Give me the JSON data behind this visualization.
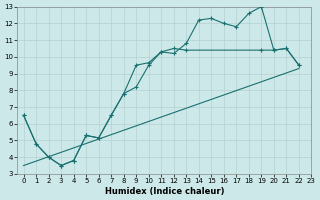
{
  "xlabel": "Humidex (Indice chaleur)",
  "xlim": [
    -0.5,
    23
  ],
  "ylim": [
    3,
    13
  ],
  "xticks": [
    0,
    1,
    2,
    3,
    4,
    5,
    6,
    7,
    8,
    9,
    10,
    11,
    12,
    13,
    14,
    15,
    16,
    17,
    18,
    19,
    20,
    21,
    22,
    23
  ],
  "yticks": [
    3,
    4,
    5,
    6,
    7,
    8,
    9,
    10,
    11,
    12,
    13
  ],
  "bg_color": "#cde8e8",
  "grid_color": "#b8d4d4",
  "line_color": "#1a7070",
  "line1_x": [
    0,
    1,
    2,
    3,
    4,
    5,
    6,
    7,
    8,
    9,
    10,
    11,
    12,
    13,
    14,
    15,
    16,
    17,
    18,
    19,
    20,
    21,
    22
  ],
  "line1_y": [
    6.5,
    4.8,
    4.0,
    3.5,
    3.8,
    5.3,
    5.15,
    6.5,
    7.8,
    9.5,
    9.65,
    10.3,
    10.2,
    10.8,
    12.2,
    12.3,
    12.0,
    11.8,
    12.6,
    13.0,
    10.4,
    10.5,
    9.5
  ],
  "line2_x": [
    0,
    1,
    2,
    3,
    4,
    5,
    6,
    7,
    8,
    9,
    10,
    11,
    12,
    13,
    19,
    20,
    21,
    22
  ],
  "line2_y": [
    6.5,
    4.8,
    4.0,
    3.5,
    3.8,
    5.3,
    5.15,
    6.5,
    7.8,
    8.2,
    9.5,
    10.3,
    10.5,
    10.4,
    10.4,
    10.4,
    10.5,
    9.5
  ],
  "line3_x": [
    0,
    22
  ],
  "line3_y": [
    3.5,
    9.3
  ]
}
